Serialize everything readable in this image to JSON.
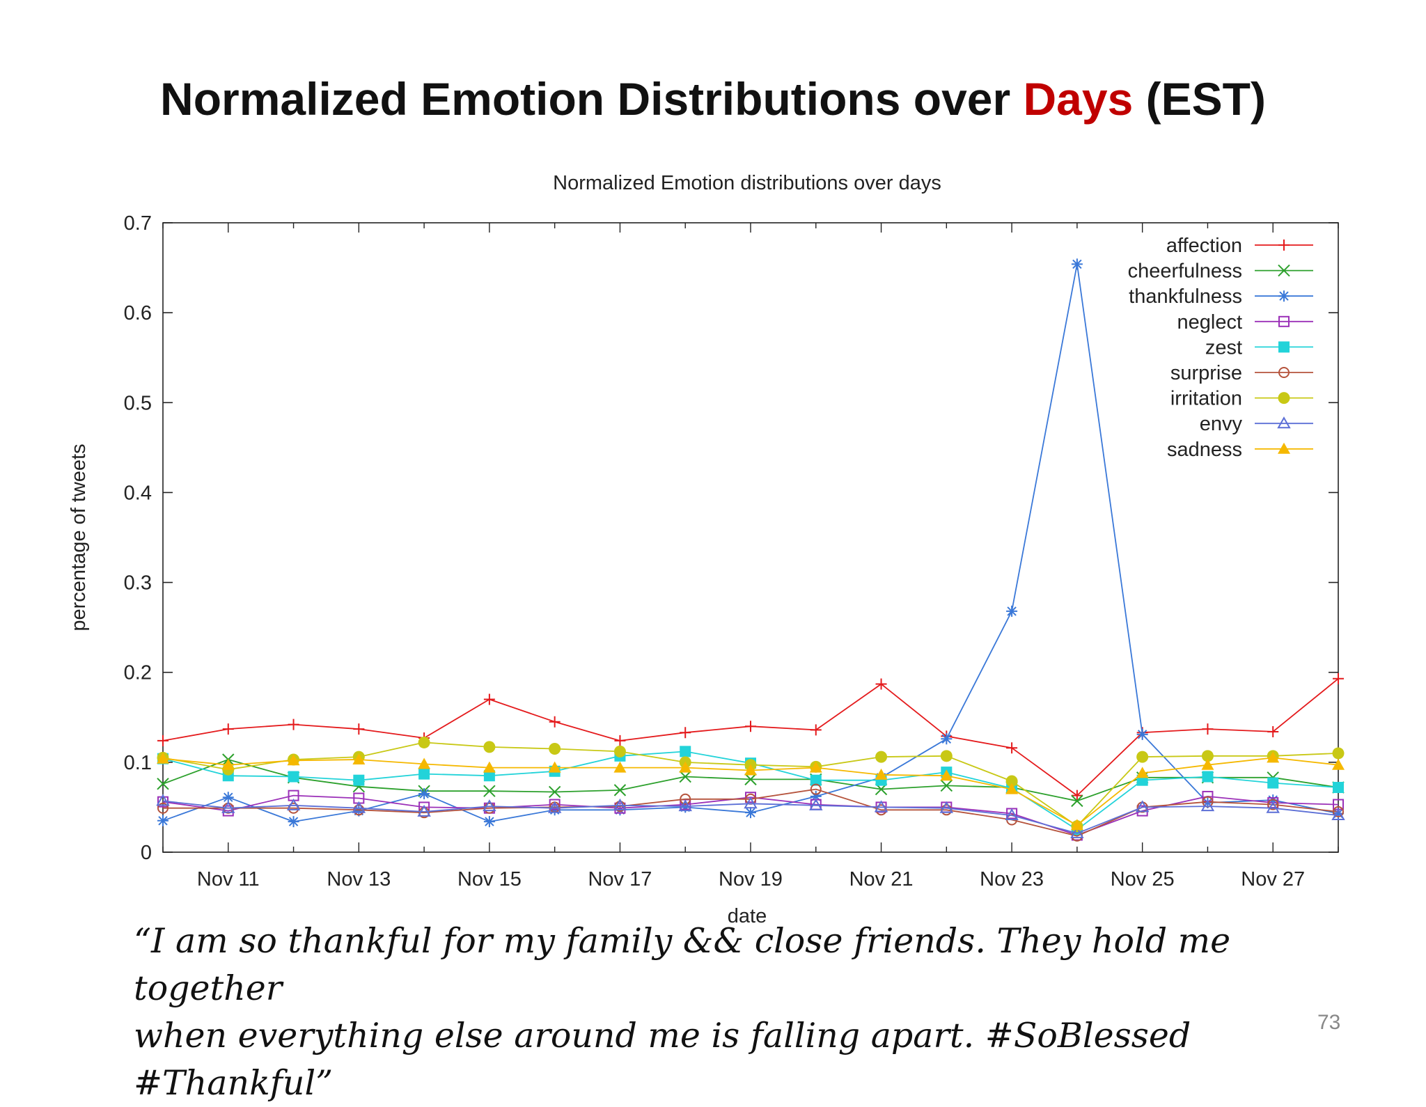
{
  "slide": {
    "title_before": "Normalized Emotion Distributions over ",
    "title_accent": "Days",
    "title_after": " (EST)",
    "quote_line1": "“I am so thankful for my family && close friends. They hold me together",
    "quote_line2": "when everything else around me is falling apart. #SoBlessed #Thankful”",
    "page_number": "73",
    "accent_color": "#c00000"
  },
  "chart_data": {
    "type": "line",
    "title": "Normalized Emotion distributions over days",
    "xlabel": "date",
    "ylabel": "percentage of tweets",
    "x": [
      "Nov 10",
      "Nov 11",
      "Nov 12",
      "Nov 13",
      "Nov 14",
      "Nov 15",
      "Nov 16",
      "Nov 17",
      "Nov 18",
      "Nov 19",
      "Nov 20",
      "Nov 21",
      "Nov 22",
      "Nov 23",
      "Nov 24",
      "Nov 25",
      "Nov 26",
      "Nov 27",
      "Nov 28"
    ],
    "xticks": [
      "Nov 11",
      "Nov 13",
      "Nov 15",
      "Nov 17",
      "Nov 19",
      "Nov 21",
      "Nov 23",
      "Nov 25",
      "Nov 27"
    ],
    "ylim": [
      0,
      0.7
    ],
    "yticks": [
      "0",
      "0.1",
      "0.2",
      "0.3",
      "0.4",
      "0.5",
      "0.6",
      "0.7"
    ],
    "legend_position": "top-right",
    "grid": false,
    "series": [
      {
        "name": "affection",
        "color": "#e41a1c",
        "marker": "plus",
        "values": [
          0.124,
          0.137,
          0.142,
          0.137,
          0.127,
          0.17,
          0.145,
          0.124,
          0.133,
          0.14,
          0.136,
          0.187,
          0.129,
          0.116,
          0.063,
          0.133,
          0.137,
          0.134,
          0.193
        ]
      },
      {
        "name": "cheerfulness",
        "color": "#2ca02c",
        "marker": "cross",
        "values": [
          0.076,
          0.103,
          0.083,
          0.073,
          0.068,
          0.068,
          0.067,
          0.069,
          0.084,
          0.081,
          0.081,
          0.07,
          0.074,
          0.072,
          0.057,
          0.083,
          0.083,
          0.083,
          0.072
        ]
      },
      {
        "name": "thankfulness",
        "color": "#3a78d8",
        "marker": "star",
        "values": [
          0.035,
          0.061,
          0.034,
          0.046,
          0.065,
          0.034,
          0.047,
          0.047,
          0.05,
          0.044,
          0.062,
          0.083,
          0.126,
          0.268,
          0.654,
          0.131,
          0.055,
          0.058,
          0.043
        ]
      },
      {
        "name": "neglect",
        "color": "#9b30b8",
        "marker": "square",
        "values": [
          0.056,
          0.046,
          0.063,
          0.06,
          0.05,
          0.049,
          0.053,
          0.049,
          0.053,
          0.061,
          0.053,
          0.05,
          0.05,
          0.043,
          0.019,
          0.046,
          0.062,
          0.055,
          0.053
        ]
      },
      {
        "name": "zest",
        "color": "#22d3d9",
        "marker": "filled-square",
        "values": [
          0.104,
          0.085,
          0.084,
          0.08,
          0.087,
          0.085,
          0.09,
          0.107,
          0.112,
          0.099,
          0.08,
          0.08,
          0.089,
          0.071,
          0.025,
          0.08,
          0.084,
          0.077,
          0.072
        ]
      },
      {
        "name": "surprise",
        "color": "#b5533c",
        "marker": "circle",
        "values": [
          0.049,
          0.049,
          0.049,
          0.047,
          0.044,
          0.049,
          0.05,
          0.051,
          0.059,
          0.059,
          0.07,
          0.047,
          0.047,
          0.036,
          0.018,
          0.05,
          0.056,
          0.053,
          0.045
        ]
      },
      {
        "name": "irritation",
        "color": "#c8c815",
        "marker": "filled-circle",
        "values": [
          0.105,
          0.092,
          0.103,
          0.106,
          0.122,
          0.117,
          0.115,
          0.112,
          0.1,
          0.097,
          0.095,
          0.106,
          0.107,
          0.079,
          0.029,
          0.106,
          0.107,
          0.107,
          0.11
        ]
      },
      {
        "name": "envy",
        "color": "#5c6fd6",
        "marker": "triangle",
        "values": [
          0.057,
          0.049,
          0.052,
          0.049,
          0.045,
          0.051,
          0.049,
          0.052,
          0.051,
          0.054,
          0.052,
          0.05,
          0.049,
          0.041,
          0.021,
          0.05,
          0.051,
          0.049,
          0.041
        ]
      },
      {
        "name": "sadness",
        "color": "#f5b800",
        "marker": "filled-triangle",
        "values": [
          0.104,
          0.097,
          0.102,
          0.103,
          0.098,
          0.094,
          0.094,
          0.094,
          0.094,
          0.091,
          0.094,
          0.086,
          0.085,
          0.07,
          0.03,
          0.088,
          0.097,
          0.105,
          0.097
        ]
      }
    ]
  }
}
